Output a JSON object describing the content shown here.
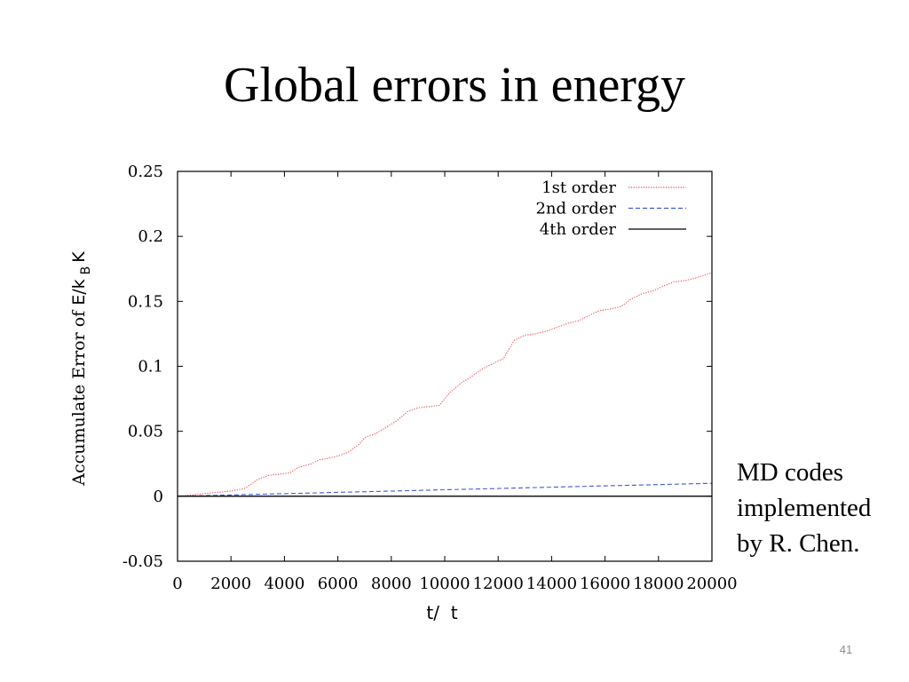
{
  "slide": {
    "title": "Global errors in energy",
    "note_lines": [
      "MD codes",
      "implemented",
      "by R. Chen."
    ],
    "page_number": "41"
  },
  "chart_data": {
    "type": "line",
    "title": "",
    "xlabel": "t/  t",
    "ylabel_prefix": "Accumulate Error of ",
    "ylabel_main": "E/k",
    "ylabel_sub": "B",
    "ylabel_suffix": "K",
    "xlim": [
      0,
      20000
    ],
    "ylim": [
      -0.05,
      0.25
    ],
    "x_ticks": [
      0,
      2000,
      4000,
      6000,
      8000,
      10000,
      12000,
      14000,
      16000,
      18000,
      20000
    ],
    "x_tick_labels": [
      "0",
      "2000",
      "4000",
      "6000",
      "8000",
      "10000",
      "12000",
      "14000",
      "16000",
      "18000",
      "20000"
    ],
    "y_ticks": [
      -0.05,
      0,
      0.05,
      0.1,
      0.15,
      0.2,
      0.25
    ],
    "y_tick_labels": [
      "-0.05",
      "0",
      "0.05",
      "0.1",
      "0.15",
      "0.2",
      "0.25"
    ],
    "grid": false,
    "legend_position": "top-right",
    "series": [
      {
        "name": "1st order",
        "color": "#e8474d",
        "style": "dotted",
        "x": [
          0,
          500,
          1000,
          1500,
          2000,
          2500,
          2800,
          3000,
          3400,
          3800,
          4200,
          4500,
          5000,
          5300,
          5600,
          6000,
          6400,
          6800,
          7000,
          7400,
          7800,
          8200,
          8600,
          9000,
          9400,
          9800,
          10200,
          10600,
          11000,
          11400,
          11800,
          12200,
          12600,
          13000,
          13400,
          13800,
          14200,
          14600,
          15000,
          15400,
          15800,
          16200,
          16600,
          17000,
          17400,
          17800,
          18200,
          18600,
          19000,
          19400,
          20000
        ],
        "y": [
          0,
          0.001,
          0.002,
          0.003,
          0.004,
          0.006,
          0.01,
          0.013,
          0.016,
          0.017,
          0.018,
          0.022,
          0.025,
          0.028,
          0.029,
          0.031,
          0.034,
          0.04,
          0.045,
          0.048,
          0.053,
          0.058,
          0.065,
          0.068,
          0.069,
          0.07,
          0.08,
          0.087,
          0.092,
          0.098,
          0.102,
          0.106,
          0.12,
          0.124,
          0.125,
          0.127,
          0.13,
          0.133,
          0.135,
          0.139,
          0.143,
          0.144,
          0.146,
          0.152,
          0.156,
          0.158,
          0.162,
          0.165,
          0.166,
          0.168,
          0.172
        ]
      },
      {
        "name": "2nd order",
        "color": "#3b5bd6",
        "style": "dashed",
        "x": [
          0,
          2000,
          4000,
          6000,
          8000,
          10000,
          12000,
          14000,
          16000,
          18000,
          20000
        ],
        "y": [
          0,
          0.001,
          0.002,
          0.003,
          0.004,
          0.005,
          0.006,
          0.007,
          0.008,
          0.009,
          0.01
        ]
      },
      {
        "name": "4th order",
        "color": "#000000",
        "style": "solid",
        "x": [
          0,
          5000,
          10000,
          15000,
          20000
        ],
        "y": [
          0,
          0,
          0,
          0,
          0
        ]
      }
    ]
  }
}
